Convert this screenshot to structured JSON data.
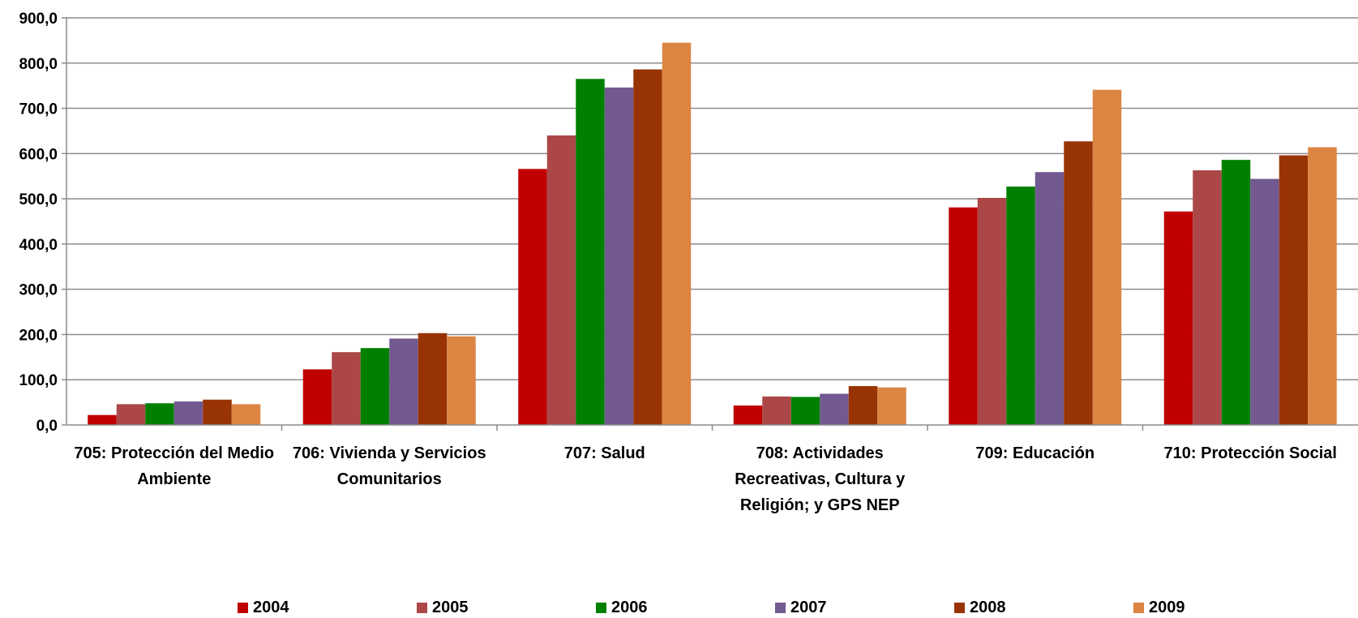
{
  "chart_data": {
    "type": "bar",
    "title": "",
    "xlabel": "",
    "ylabel": "",
    "ylim": [
      0,
      900
    ],
    "yticks": [
      "0,0",
      "100,0",
      "200,0",
      "300,0",
      "400,0",
      "500,0",
      "600,0",
      "700,0",
      "800,0",
      "900,0"
    ],
    "grid": true,
    "legend_position": "bottom",
    "categories": [
      [
        "705: Protección del Medio",
        "Ambiente"
      ],
      [
        "706: Vivienda y Servicios",
        "Comunitarios"
      ],
      [
        "707: Salud"
      ],
      [
        "708: Actividades",
        "Recreativas, Cultura y",
        "Religión; y GPS NEP"
      ],
      [
        "709: Educación"
      ],
      [
        "710: Protección Social"
      ]
    ],
    "series": [
      {
        "name": "2004",
        "color": "#C00000",
        "values": [
          22,
          123,
          566,
          43,
          481,
          472
        ]
      },
      {
        "name": "2005",
        "color": "#AB4747",
        "values": [
          46,
          161,
          640,
          63,
          502,
          563
        ]
      },
      {
        "name": "2006",
        "color": "#008000",
        "values": [
          48,
          170,
          765,
          62,
          527,
          586
        ]
      },
      {
        "name": "2007",
        "color": "#725990",
        "values": [
          52,
          191,
          746,
          69,
          559,
          544
        ]
      },
      {
        "name": "2008",
        "color": "#983304",
        "values": [
          56,
          203,
          786,
          86,
          627,
          596
        ]
      },
      {
        "name": "2009",
        "color": "#DC8543",
        "values": [
          46,
          196,
          845,
          83,
          741,
          614
        ]
      }
    ]
  }
}
